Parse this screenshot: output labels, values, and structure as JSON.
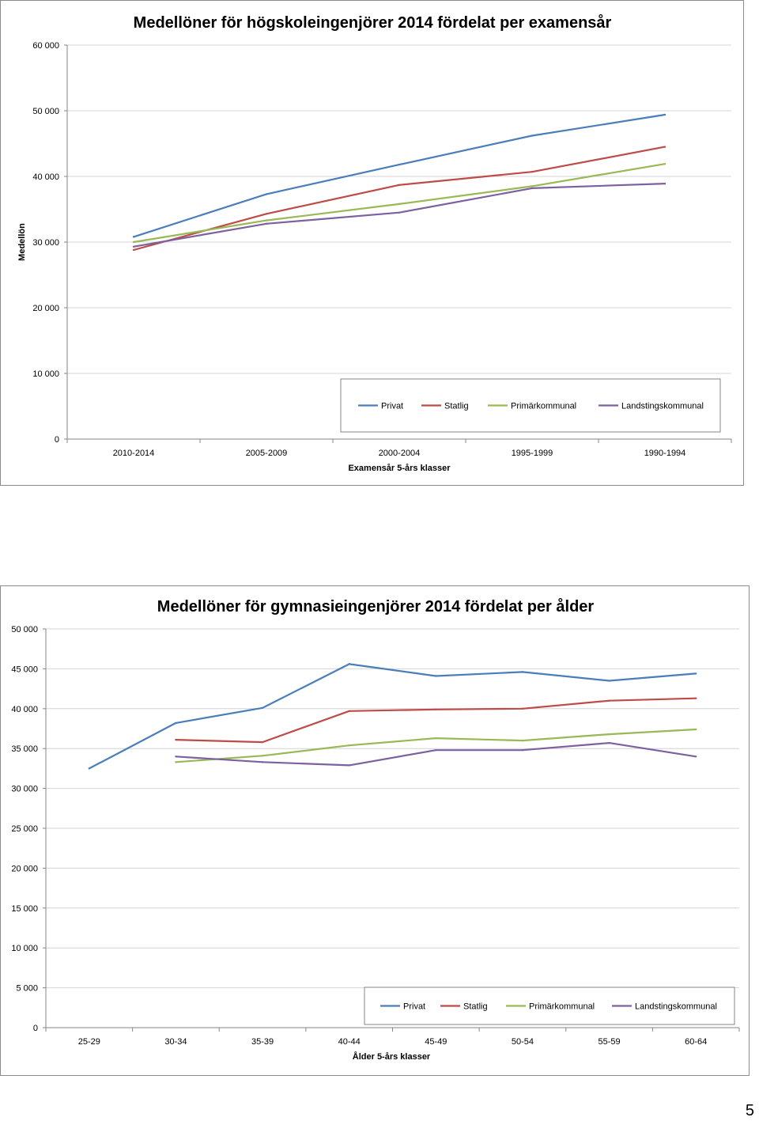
{
  "chart_data": [
    {
      "type": "line",
      "title": "Medellöner för högskoleingenjörer 2014 fördelat per examensår",
      "xlabel": "Examensår 5-års klasser",
      "ylabel": "Medellön",
      "categories": [
        "2010-2014",
        "2005-2009",
        "2000-2004",
        "1995-1999",
        "1990-1994"
      ],
      "ylim": [
        0,
        60000
      ],
      "yticks": [
        "0",
        "10 000",
        "20 000",
        "30 000",
        "40 000",
        "50 000",
        "60 000"
      ],
      "grid": true,
      "legend": "bottom-right inside",
      "series": [
        {
          "name": "Privat",
          "color": "#4a7ebb",
          "values": [
            30800,
            37300,
            41800,
            46200,
            49400
          ]
        },
        {
          "name": "Statlig",
          "color": "#be4b48",
          "values": [
            28800,
            34300,
            38700,
            40700,
            44500
          ]
        },
        {
          "name": "Primärkommunal",
          "color": "#98b954",
          "values": [
            30000,
            33300,
            35800,
            38500,
            41900
          ]
        },
        {
          "name": "Landstingskommunal",
          "color": "#7d60a0",
          "values": [
            29300,
            32800,
            34500,
            38200,
            38900
          ]
        }
      ]
    },
    {
      "type": "line",
      "title": "Medellöner för gymnasieingenjörer 2014 fördelat per ålder",
      "xlabel": "Ålder 5-års klasser",
      "ylabel": "",
      "categories": [
        "25-29",
        "30-34",
        "35-39",
        "40-44",
        "45-49",
        "50-54",
        "55-59",
        "60-64"
      ],
      "ylim": [
        0,
        50000
      ],
      "yticks": [
        "0",
        "5 000",
        "10 000",
        "15 000",
        "20 000",
        "25 000",
        "30 000",
        "35 000",
        "40 000",
        "45 000",
        "50 000"
      ],
      "grid": true,
      "legend": "bottom-right inside",
      "series": [
        {
          "name": "Privat",
          "color": "#4a7ebb",
          "values": [
            32500,
            38200,
            40100,
            45600,
            44100,
            44600,
            43500,
            44400
          ]
        },
        {
          "name": "Statlig",
          "color": "#be4b48",
          "values": [
            null,
            36100,
            35800,
            39700,
            39900,
            40000,
            41000,
            41300
          ]
        },
        {
          "name": "Primärkommunal",
          "color": "#98b954",
          "values": [
            null,
            33300,
            34100,
            35400,
            36300,
            36000,
            36800,
            37400
          ]
        },
        {
          "name": "Landstingskommunal",
          "color": "#7d60a0",
          "values": [
            null,
            34000,
            33300,
            32900,
            34800,
            34800,
            35700,
            34000
          ]
        }
      ]
    }
  ],
  "page": {
    "number": "5"
  }
}
